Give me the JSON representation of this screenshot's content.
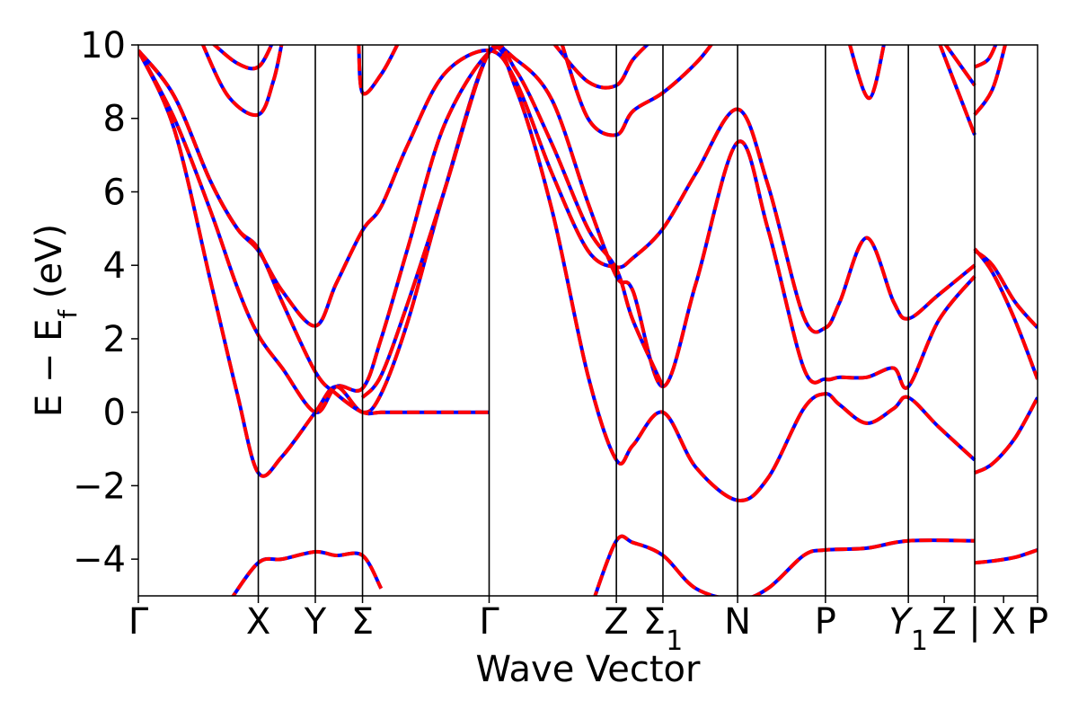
{
  "chart_data": {
    "type": "line",
    "xlabel": "Wave Vector",
    "ylabel": "E − E_f (eV)",
    "ylabel_parts": {
      "main": "E − E",
      "sub": "f",
      "tail": " (eV)"
    },
    "ylim": [
      -5,
      10
    ],
    "xlim": [
      0,
      1
    ],
    "yticks": [
      -4,
      -2,
      0,
      2,
      4,
      6,
      8,
      10
    ],
    "ytick_labels": [
      "−4",
      "−2",
      "0",
      "2",
      "4",
      "6",
      "8",
      "10"
    ],
    "kpoints": [
      {
        "label": "Γ",
        "sub": "",
        "x": 0.0
      },
      {
        "label": "X",
        "sub": "",
        "x": 0.1334
      },
      {
        "label": "Y",
        "sub": "",
        "x": 0.1968
      },
      {
        "label": "Σ",
        "sub": "",
        "x": 0.2493
      },
      {
        "label": "Γ",
        "sub": "",
        "x": 0.3901
      },
      {
        "label": "Z",
        "sub": "",
        "x": 0.5316
      },
      {
        "label": "Σ",
        "sub": "1",
        "x": 0.5834
      },
      {
        "label": "N",
        "sub": "",
        "x": 0.6664
      },
      {
        "label": "P",
        "sub": "",
        "x": 0.7641
      },
      {
        "label": "Y",
        "sub": "1",
        "x": 0.8563
      },
      {
        "label": "Z | X",
        "sub": "",
        "x": 0.9301
      },
      {
        "label": "P",
        "sub": "",
        "x": 1.0
      }
    ],
    "tick_label_overrides": [
      {
        "text": "Γ",
        "x": 0.0
      },
      {
        "text": "X",
        "x": 0.1334
      },
      {
        "text": "Y",
        "x": 0.1968
      },
      {
        "text": "Σ",
        "x": 0.2493
      },
      {
        "text": "Γ",
        "x": 0.3901
      },
      {
        "text": "Z",
        "x": 0.5316
      },
      {
        "text": "Σ",
        "sub": "1",
        "x": 0.5834
      },
      {
        "text": "N",
        "x": 0.6664
      },
      {
        "text": "P",
        "x": 0.7641
      },
      {
        "text": "Y",
        "sub": "1",
        "italic": true,
        "x": 0.8563
      },
      {
        "text": "Z",
        "x": 0.8962
      },
      {
        "text": "|",
        "x": 0.9301
      },
      {
        "text": "X",
        "x": 0.9622
      },
      {
        "text": "P",
        "x": 1.0
      }
    ],
    "grid": false,
    "series_style": [
      {
        "name": "",
        "color": "#0000ff",
        "style": "solid"
      },
      {
        "name": "",
        "color": "#ff0000",
        "style": "dashed"
      }
    ],
    "bands": [
      [
        [
          0.0,
          9.85
        ],
        [
          0.04,
          8.0
        ],
        [
          0.08,
          5.5
        ],
        [
          0.11,
          3.4
        ],
        [
          0.1334,
          2.1
        ],
        [
          0.16,
          1.2
        ],
        [
          0.1968,
          0.0
        ],
        [
          0.22,
          0.7
        ],
        [
          0.2493,
          0.65
        ],
        [
          0.27,
          2.0
        ],
        [
          0.3,
          4.5
        ],
        [
          0.34,
          7.8
        ],
        [
          0.3901,
          9.8
        ],
        [
          0.42,
          9.6
        ],
        [
          0.46,
          8.5
        ],
        [
          0.5,
          5.7
        ],
        [
          0.5316,
          3.7
        ],
        [
          0.55,
          3.3
        ],
        [
          0.5834,
          0.7
        ],
        [
          0.62,
          3.5
        ],
        [
          0.6664,
          7.35
        ],
        [
          0.7,
          5.0
        ],
        [
          0.74,
          1.2
        ],
        [
          0.7641,
          0.9
        ],
        [
          0.78,
          0.95
        ],
        [
          0.81,
          0.95
        ],
        [
          0.84,
          1.2
        ],
        [
          0.8563,
          0.7
        ],
        [
          0.89,
          2.5
        ],
        [
          0.9301,
          3.7
        ]
      ],
      [
        [
          0.0,
          9.85
        ],
        [
          0.04,
          7.7
        ],
        [
          0.08,
          3.6
        ],
        [
          0.11,
          0.5
        ],
        [
          0.1334,
          -1.65
        ],
        [
          0.16,
          -1.2
        ],
        [
          0.1968,
          0.0
        ],
        [
          0.22,
          0.7
        ],
        [
          0.2493,
          -0.0
        ],
        [
          0.27,
          0.5
        ],
        [
          0.3,
          2.5
        ],
        [
          0.34,
          6.0
        ],
        [
          0.3901,
          9.8
        ],
        [
          0.42,
          8.8
        ],
        [
          0.46,
          5.5
        ],
        [
          0.5,
          1.0
        ],
        [
          0.5316,
          -1.3
        ],
        [
          0.55,
          -0.9
        ],
        [
          0.5834,
          0.0
        ],
        [
          0.62,
          -1.5
        ],
        [
          0.6664,
          -2.4
        ],
        [
          0.7,
          -1.8
        ],
        [
          0.74,
          0.1
        ],
        [
          0.7641,
          0.5
        ],
        [
          0.78,
          0.2
        ],
        [
          0.81,
          -0.3
        ],
        [
          0.84,
          0.1
        ],
        [
          0.8563,
          0.4
        ],
        [
          0.89,
          -0.4
        ],
        [
          0.9301,
          -1.3
        ]
      ],
      [
        [
          0.0,
          9.85
        ],
        [
          0.04,
          8.6
        ],
        [
          0.08,
          6.3
        ],
        [
          0.11,
          5.0
        ],
        [
          0.1334,
          4.4
        ],
        [
          0.16,
          3.3
        ],
        [
          0.1968,
          2.35
        ],
        [
          0.22,
          3.5
        ],
        [
          0.2493,
          4.95
        ],
        [
          0.27,
          5.6
        ],
        [
          0.3,
          7.3
        ],
        [
          0.34,
          9.2
        ],
        [
          0.3901,
          9.85
        ],
        [
          0.42,
          9.0
        ],
        [
          0.46,
          6.5
        ],
        [
          0.5,
          4.4
        ],
        [
          0.5316,
          3.95
        ],
        [
          0.55,
          4.2
        ],
        [
          0.5834,
          5.0
        ],
        [
          0.62,
          6.5
        ],
        [
          0.6664,
          8.25
        ],
        [
          0.7,
          6.2
        ],
        [
          0.74,
          2.6
        ],
        [
          0.7641,
          2.3
        ],
        [
          0.78,
          3.0
        ],
        [
          0.81,
          4.75
        ],
        [
          0.84,
          3.0
        ],
        [
          0.8563,
          2.55
        ],
        [
          0.89,
          3.2
        ],
        [
          0.9301,
          4.0
        ]
      ],
      [
        [
          0.0,
          9.85
        ],
        [
          0.04,
          8.6
        ],
        [
          0.08,
          6.3
        ],
        [
          0.11,
          5.0
        ],
        [
          0.1334,
          4.45
        ],
        [
          0.16,
          3.0
        ],
        [
          0.1968,
          1.1
        ],
        [
          0.22,
          0.5
        ],
        [
          0.2493,
          -0.0
        ],
        [
          0.27,
          0.0
        ],
        [
          0.3,
          0.0
        ],
        [
          0.34,
          0.0
        ],
        [
          0.3901,
          0.0
        ]
      ],
      [
        [
          0.2493,
          0.4
        ],
        [
          0.27,
          1.0
        ],
        [
          0.3,
          3.0
        ],
        [
          0.34,
          6.0
        ],
        [
          0.3901,
          9.8
        ],
        [
          0.42,
          9.3
        ],
        [
          0.46,
          7.3
        ],
        [
          0.5,
          5.0
        ],
        [
          0.5316,
          3.9
        ],
        [
          0.55,
          2.5
        ],
        [
          0.5834,
          0.7
        ]
      ],
      [
        [
          0.1,
          -5.2
        ],
        [
          0.1334,
          -4.1
        ],
        [
          0.16,
          -4.0
        ],
        [
          0.1968,
          -3.8
        ],
        [
          0.22,
          -3.9
        ],
        [
          0.2493,
          -3.9
        ],
        [
          0.27,
          -4.8
        ]
      ],
      [
        [
          0.505,
          -5.2
        ],
        [
          0.5316,
          -3.5
        ],
        [
          0.55,
          -3.55
        ],
        [
          0.5834,
          -3.9
        ],
        [
          0.62,
          -4.8
        ],
        [
          0.6664,
          -5.1
        ],
        [
          0.7,
          -4.8
        ],
        [
          0.74,
          -3.9
        ],
        [
          0.7641,
          -3.75
        ],
        [
          0.81,
          -3.7
        ],
        [
          0.8563,
          -3.5
        ],
        [
          0.9301,
          -3.5
        ]
      ],
      [
        [
          0.08,
          10.1
        ],
        [
          0.11,
          9.5
        ],
        [
          0.1334,
          9.4
        ],
        [
          0.15,
          10.1
        ]
      ],
      [
        [
          0.07,
          10.1
        ],
        [
          0.1,
          8.6
        ],
        [
          0.1334,
          8.1
        ],
        [
          0.15,
          9.0
        ],
        [
          0.16,
          10.1
        ]
      ],
      [
        [
          0.245,
          10.1
        ],
        [
          0.2493,
          8.7
        ],
        [
          0.27,
          9.2
        ],
        [
          0.29,
          10.1
        ]
      ],
      [
        [
          0.46,
          10.1
        ],
        [
          0.5,
          9.0
        ],
        [
          0.5316,
          8.9
        ],
        [
          0.55,
          9.6
        ],
        [
          0.57,
          10.1
        ]
      ],
      [
        [
          0.47,
          10.1
        ],
        [
          0.5,
          8.0
        ],
        [
          0.5316,
          7.55
        ],
        [
          0.55,
          8.2
        ],
        [
          0.5834,
          8.7
        ],
        [
          0.62,
          9.5
        ],
        [
          0.64,
          10.1
        ]
      ],
      [
        [
          0.79,
          10.1
        ],
        [
          0.8125,
          8.55
        ],
        [
          0.83,
          10.1
        ]
      ],
      [
        [
          0.895,
          10.1
        ],
        [
          0.9301,
          8.9
        ]
      ],
      [
        [
          0.89,
          10.1
        ],
        [
          0.9301,
          7.55
        ]
      ],
      [
        [
          0.9301,
          9.4
        ],
        [
          0.945,
          9.6
        ],
        [
          0.955,
          10.1
        ]
      ],
      [
        [
          0.9301,
          8.1
        ],
        [
          0.95,
          8.8
        ],
        [
          0.965,
          10.1
        ]
      ],
      [
        [
          0.9301,
          4.4
        ],
        [
          0.95,
          4.0
        ],
        [
          0.975,
          3.0
        ],
        [
          1.0,
          2.3
        ]
      ],
      [
        [
          0.9301,
          4.45
        ],
        [
          0.95,
          3.8
        ],
        [
          0.975,
          2.5
        ],
        [
          1.0,
          0.9
        ]
      ],
      [
        [
          0.9301,
          -1.65
        ],
        [
          0.95,
          -1.4
        ],
        [
          0.975,
          -0.7
        ],
        [
          1.0,
          0.4
        ]
      ],
      [
        [
          0.9301,
          -4.1
        ],
        [
          0.95,
          -4.05
        ],
        [
          0.975,
          -3.95
        ],
        [
          1.0,
          -3.75
        ]
      ]
    ]
  }
}
